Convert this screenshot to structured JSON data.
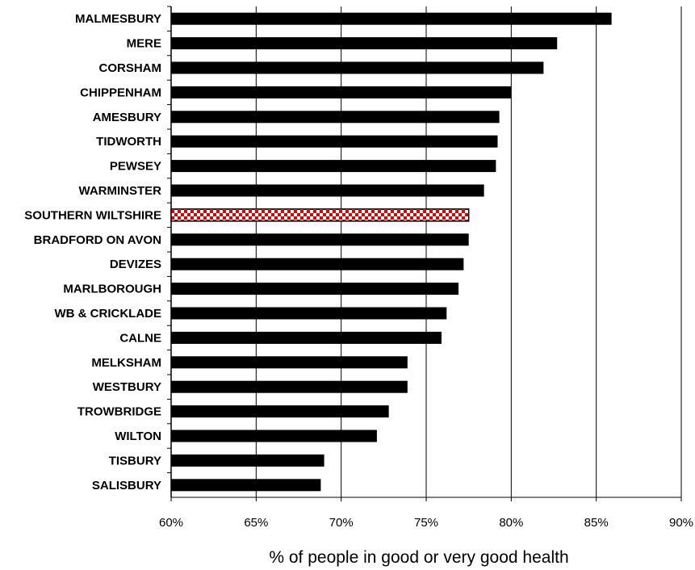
{
  "chart_data": {
    "type": "bar",
    "orientation": "horizontal",
    "title": "",
    "xlabel": "% of people in good or very good health",
    "ylabel": "",
    "xlim": [
      60,
      90
    ],
    "x_ticks": [
      "60%",
      "65%",
      "70%",
      "75%",
      "80%",
      "85%",
      "90%"
    ],
    "grid": "vertical gridlines",
    "categories": [
      "MALMESBURY",
      "MERE",
      "CORSHAM",
      "CHIPPENHAM",
      "AMESBURY",
      "TIDWORTH",
      "PEWSEY",
      "WARMINSTER",
      "SOUTHERN WILTSHIRE",
      "BRADFORD ON AVON",
      "DEVIZES",
      "MARLBOROUGH",
      "WB & CRICKLADE",
      "CALNE",
      "MELKSHAM",
      "WESTBURY",
      "TROWBRIDGE",
      "WILTON",
      "TISBURY",
      "SALISBURY"
    ],
    "values": [
      85.9,
      82.7,
      81.9,
      80.0,
      79.3,
      79.2,
      79.1,
      78.4,
      77.5,
      77.5,
      77.2,
      76.9,
      76.2,
      75.9,
      73.9,
      73.9,
      72.8,
      72.1,
      69.0,
      68.8
    ],
    "highlight": {
      "category": "SOUTHERN WILTSHIRE",
      "pattern": "red-white checkered"
    },
    "colors": {
      "bar": "#000000",
      "highlight": "#e00000",
      "grid": "#000000"
    }
  }
}
